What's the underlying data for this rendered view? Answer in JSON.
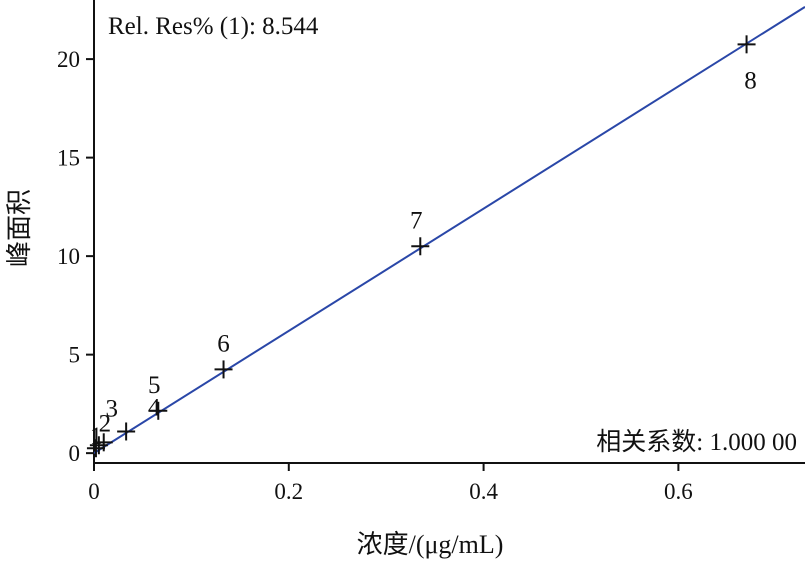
{
  "chart_data": {
    "type": "scatter",
    "title": "",
    "xlabel": "浓度/(μg/mL)",
    "ylabel": "峰面积",
    "xlim": [
      0,
      0.73
    ],
    "ylim": [
      -0.5,
      23
    ],
    "xticks": [
      0,
      0.2,
      0.4,
      0.6
    ],
    "xtick_labels": [
      "0",
      "0.2",
      "0.4",
      "0.6"
    ],
    "yticks": [
      0,
      5,
      10,
      15,
      20
    ],
    "ytick_labels": [
      "0",
      "5",
      "10",
      "15",
      "20"
    ],
    "grid": false,
    "annotations": {
      "top_left": "Rel. Res% (1): 8.544",
      "bottom_right": "相关系数: 1.000 00"
    },
    "points": [
      {
        "label": "1",
        "x": 0.002,
        "y": 0.25
      },
      {
        "label": "2",
        "x": 0.005,
        "y": 0.4
      },
      {
        "label": "3",
        "x": 0.01,
        "y": 0.55
      },
      {
        "label": "4",
        "x": 0.033,
        "y": 1.1
      },
      {
        "label": "5",
        "x": 0.066,
        "y": 2.15
      },
      {
        "label": "6",
        "x": 0.133,
        "y": 4.25
      },
      {
        "label": "7",
        "x": 0.335,
        "y": 10.5
      },
      {
        "label": "8",
        "x": 0.67,
        "y": 20.75
      }
    ],
    "fit_line": {
      "x": [
        0,
        0.73
      ],
      "y": [
        0.0,
        22.65
      ],
      "color": "#2a47a8"
    },
    "marker_color": "#111111"
  }
}
